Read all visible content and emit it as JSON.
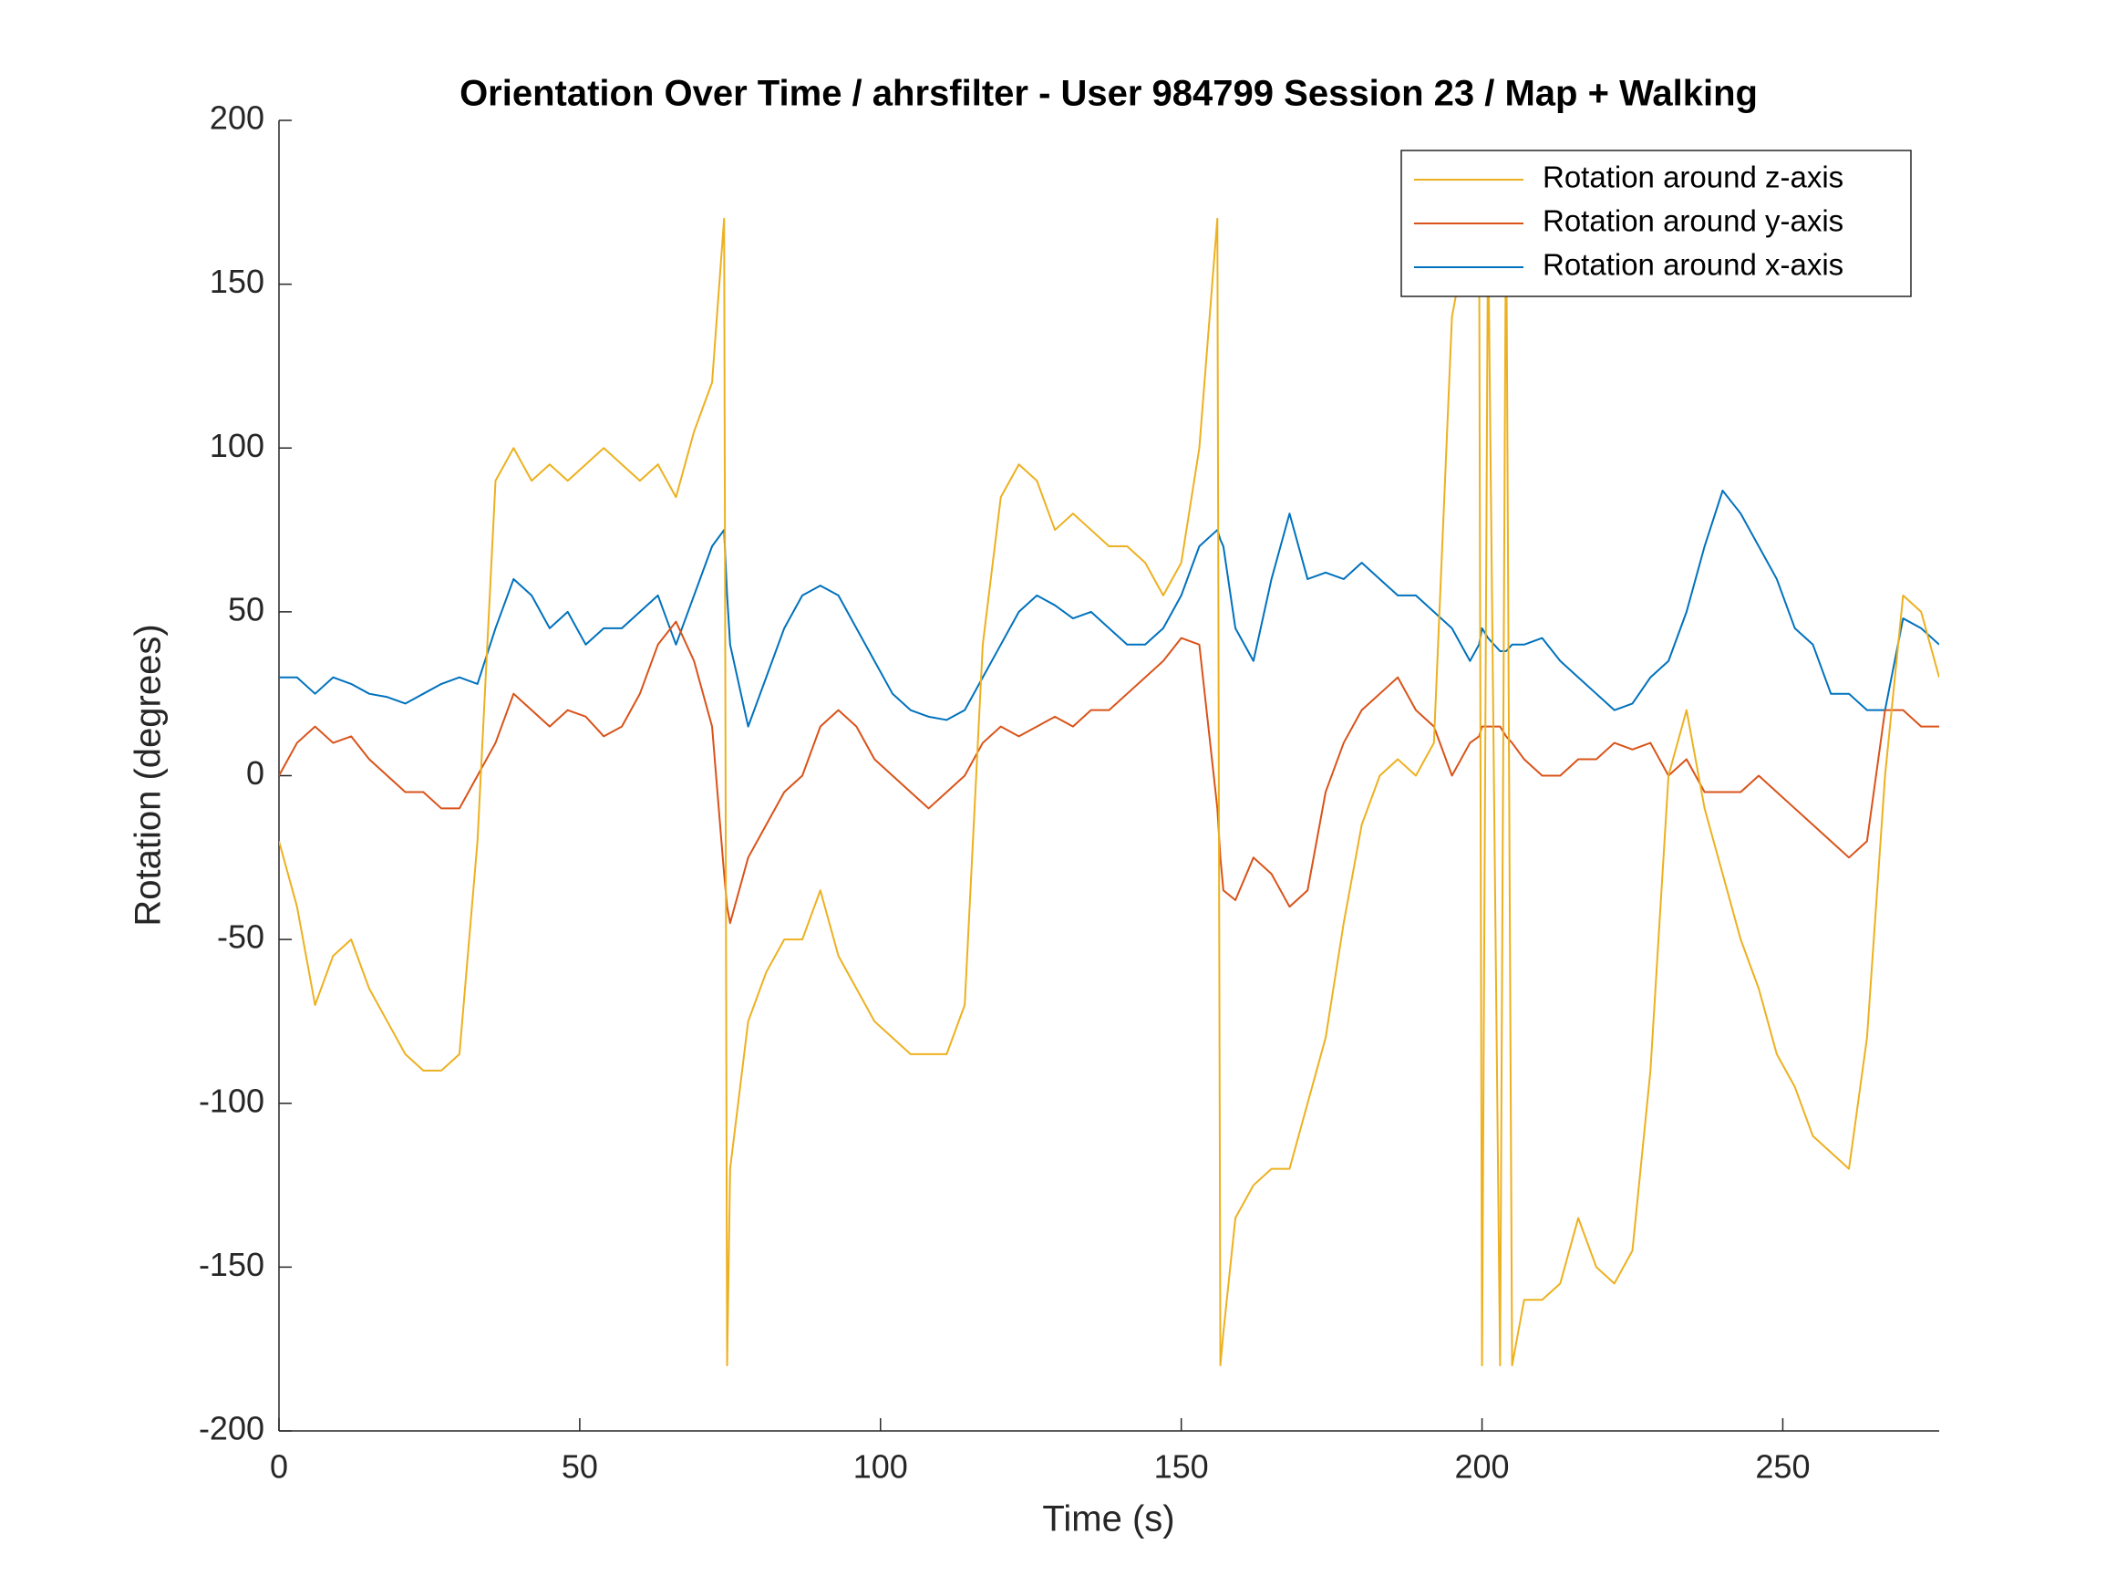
{
  "chart_data": {
    "type": "line",
    "title": "Orientation Over Time / ahrsfilter - User 984799 Session 23 / Map + Walking",
    "x_label": "Time (s)",
    "y_label": "Rotation (degrees)",
    "xlim": [
      0,
      276
    ],
    "ylim": [
      -200,
      200
    ],
    "xticks": [
      0,
      50,
      100,
      150,
      200,
      250
    ],
    "yticks": [
      -200,
      -150,
      -100,
      -50,
      0,
      50,
      100,
      150,
      200
    ],
    "legend": "upper right",
    "x": [
      0,
      3,
      6,
      9,
      12,
      15,
      18,
      21,
      24,
      27,
      30,
      33,
      36,
      39,
      42,
      45,
      48,
      51,
      54,
      57,
      60,
      63,
      66,
      69,
      72,
      74,
      74.5,
      75,
      78,
      81,
      84,
      87,
      90,
      93,
      96,
      99,
      102,
      105,
      108,
      111,
      114,
      117,
      120,
      123,
      126,
      129,
      132,
      135,
      138,
      141,
      144,
      147,
      150,
      153,
      156,
      156.5,
      157,
      159,
      162,
      165,
      168,
      171,
      174,
      177,
      180,
      183,
      186,
      189,
      192,
      195,
      198,
      199.5,
      200,
      201,
      203,
      204,
      205,
      207,
      210,
      213,
      216,
      219,
      222,
      225,
      228,
      231,
      234,
      237,
      240,
      243,
      246,
      249,
      252,
      255,
      258,
      261,
      264,
      267,
      270,
      273,
      276
    ],
    "series": [
      {
        "name": "Rotation around z-axis",
        "color": "#EDB120",
        "values": [
          -20,
          -40,
          -70,
          -55,
          -50,
          -65,
          -75,
          -85,
          -90,
          -90,
          -85,
          -20,
          90,
          100,
          90,
          95,
          90,
          95,
          100,
          95,
          90,
          95,
          85,
          105,
          120,
          170,
          -180,
          -120,
          -75,
          -60,
          -50,
          -50,
          -35,
          -55,
          -65,
          -75,
          -80,
          -85,
          -85,
          -85,
          -70,
          40,
          85,
          95,
          90,
          75,
          80,
          75,
          70,
          70,
          65,
          55,
          65,
          100,
          170,
          -180,
          -170,
          -135,
          -125,
          -120,
          -120,
          -100,
          -80,
          -45,
          -15,
          0,
          5,
          0,
          10,
          140,
          170,
          180,
          -180,
          170,
          -180,
          180,
          -180,
          -160,
          -160,
          -155,
          -135,
          -150,
          -155,
          -145,
          -90,
          0,
          20,
          -10,
          -30,
          -50,
          -65,
          -85,
          -95,
          -110,
          -115,
          -120,
          -80,
          0,
          55,
          50,
          30
        ]
      },
      {
        "name": "Rotation around y-axis",
        "color": "#D95319",
        "values": [
          0,
          10,
          15,
          10,
          12,
          5,
          0,
          -5,
          -5,
          -10,
          -10,
          0,
          10,
          25,
          20,
          15,
          20,
          18,
          12,
          15,
          25,
          40,
          47,
          35,
          15,
          -30,
          -40,
          -45,
          -25,
          -15,
          -5,
          0,
          15,
          20,
          15,
          5,
          0,
          -5,
          -10,
          -5,
          0,
          10,
          15,
          12,
          15,
          18,
          15,
          20,
          20,
          25,
          30,
          35,
          42,
          40,
          -10,
          -25,
          -35,
          -38,
          -25,
          -30,
          -40,
          -35,
          -5,
          10,
          20,
          25,
          30,
          20,
          15,
          0,
          10,
          12,
          15,
          15,
          15,
          12,
          10,
          5,
          0,
          0,
          5,
          5,
          10,
          8,
          10,
          0,
          5,
          -5,
          -5,
          -5,
          0,
          -5,
          -10,
          -15,
          -20,
          -25,
          -20,
          20,
          20,
          15,
          15
        ]
      },
      {
        "name": "Rotation around x-axis",
        "color": "#0072BD",
        "values": [
          30,
          30,
          25,
          30,
          28,
          25,
          24,
          22,
          25,
          28,
          30,
          28,
          45,
          60,
          55,
          45,
          50,
          40,
          45,
          45,
          50,
          55,
          40,
          55,
          70,
          75,
          55,
          40,
          15,
          30,
          45,
          55,
          58,
          55,
          45,
          35,
          25,
          20,
          18,
          17,
          20,
          30,
          40,
          50,
          55,
          52,
          48,
          50,
          45,
          40,
          40,
          45,
          55,
          70,
          75,
          72,
          70,
          45,
          35,
          60,
          80,
          60,
          62,
          60,
          65,
          60,
          55,
          55,
          50,
          45,
          35,
          40,
          45,
          42,
          38,
          38,
          40,
          40,
          42,
          35,
          30,
          25,
          20,
          22,
          30,
          35,
          50,
          70,
          87,
          80,
          70,
          60,
          45,
          40,
          25,
          25,
          20,
          20,
          48,
          45,
          40
        ]
      }
    ]
  }
}
